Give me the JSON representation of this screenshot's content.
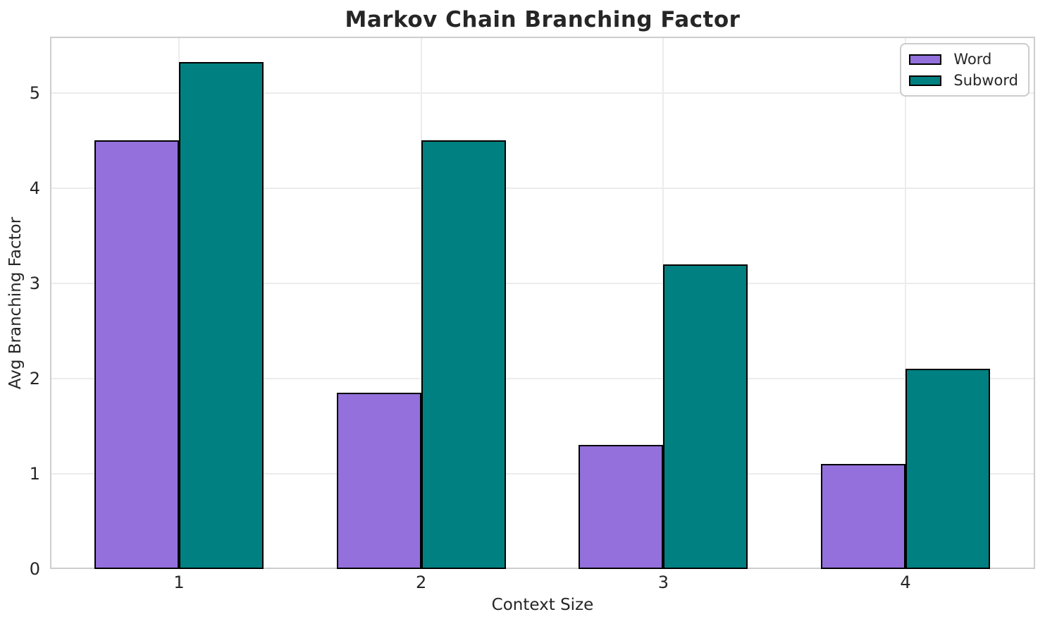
{
  "chart_data": {
    "type": "bar",
    "title": "Markov Chain Branching Factor",
    "xlabel": "Context Size",
    "ylabel": "Avg Branching Factor",
    "categories": [
      "1",
      "2",
      "3",
      "4"
    ],
    "series": [
      {
        "name": "Word",
        "color": "#9370DB",
        "values": [
          4.5,
          1.85,
          1.3,
          1.1
        ]
      },
      {
        "name": "Subword",
        "color": "#008080",
        "values": [
          5.32,
          4.5,
          3.2,
          2.1
        ]
      }
    ],
    "ylim": [
      0,
      5.59
    ],
    "yticks": [
      0,
      1,
      2,
      3,
      4,
      5
    ],
    "grid": true,
    "legend_position": "upper right",
    "bar_edge_color": "#000000",
    "grid_color": "#ececec",
    "spine_color": "#cdcdcd",
    "text_color": "#262626"
  }
}
